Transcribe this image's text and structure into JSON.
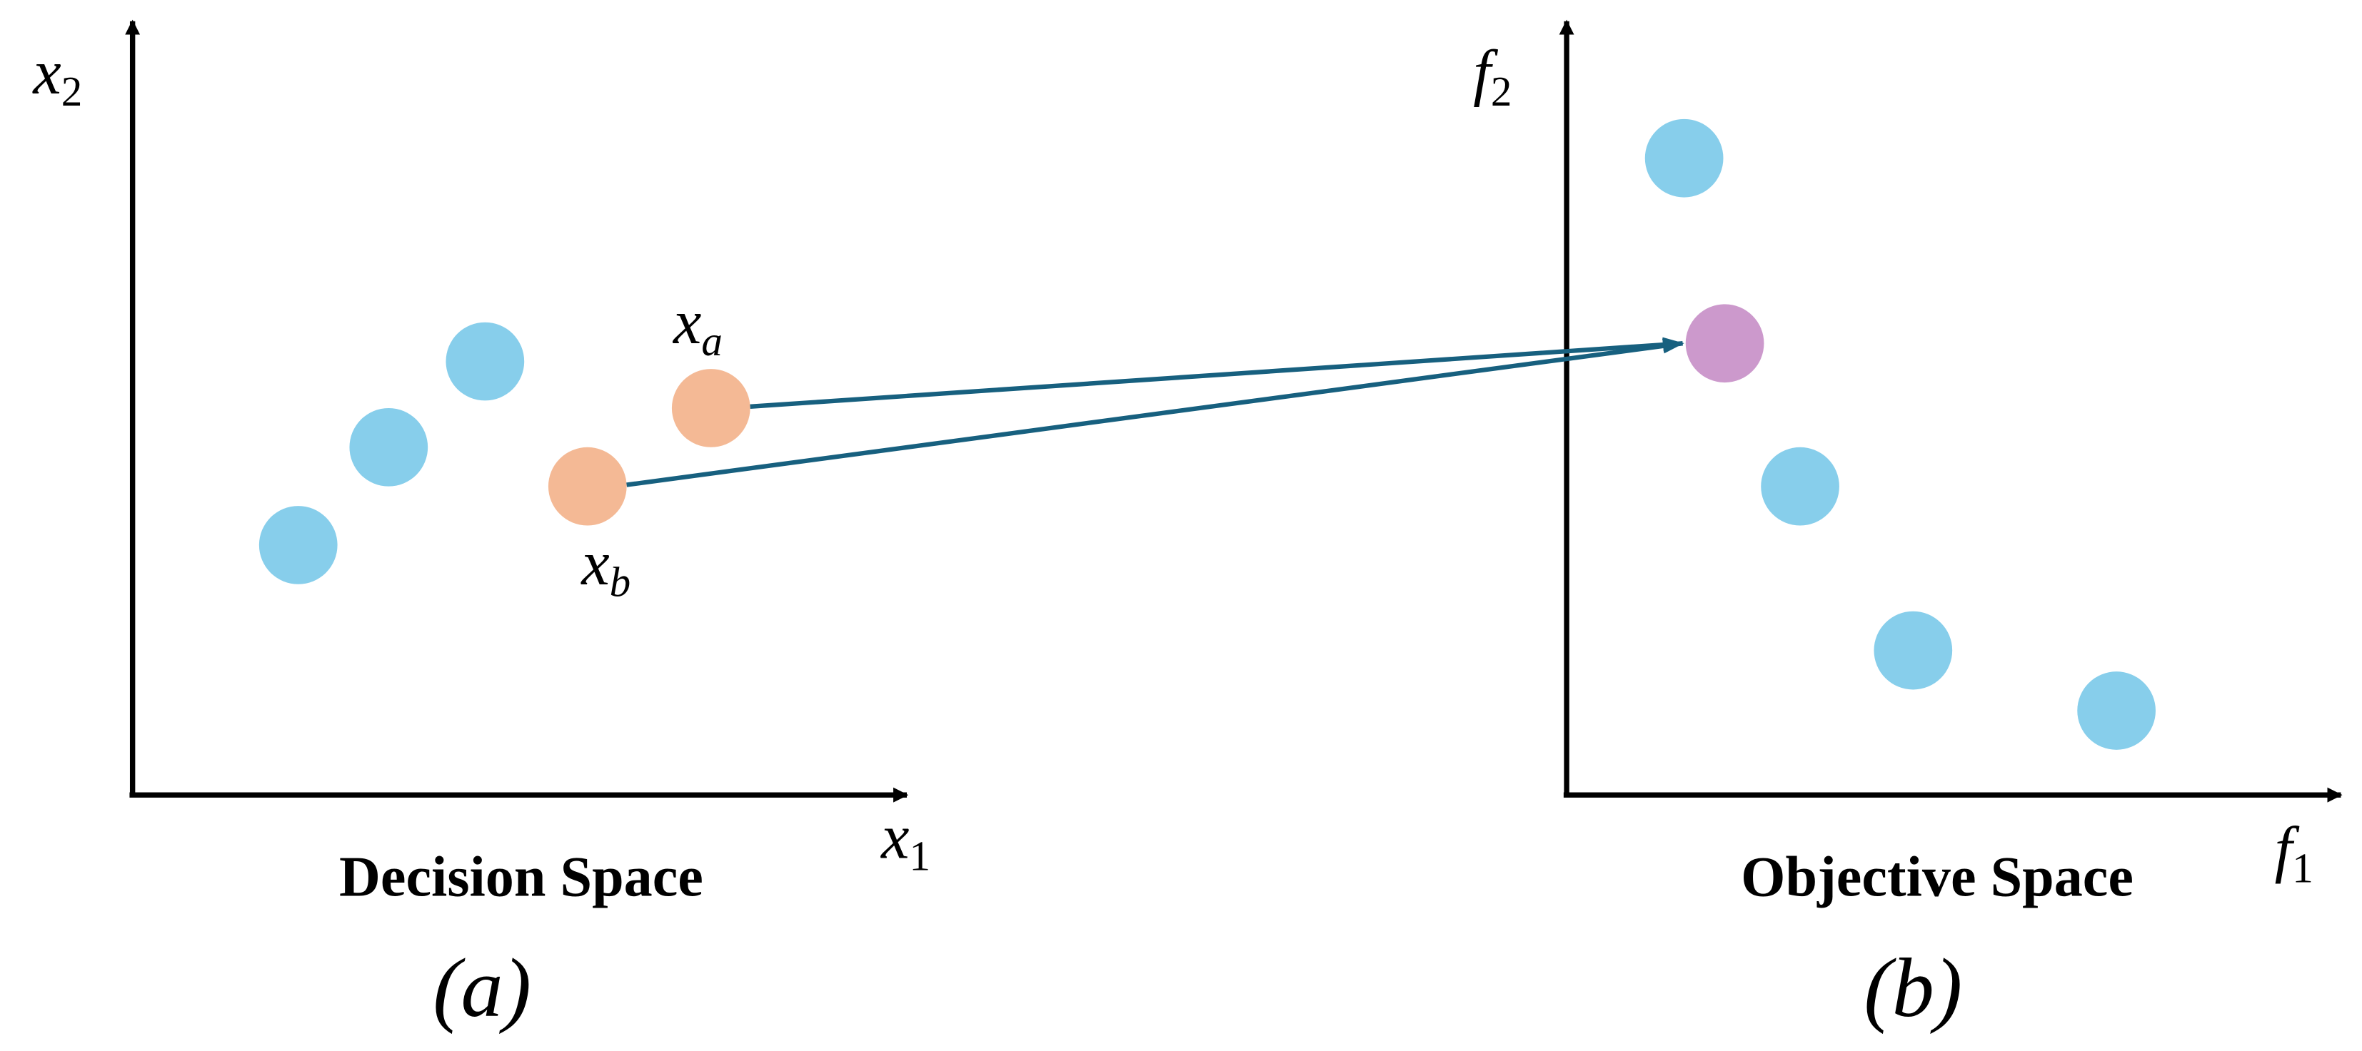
{
  "left_panel": {
    "y_axis": {
      "symbol": "x",
      "subscript": "2"
    },
    "x_axis": {
      "symbol": "x",
      "subscript": "1"
    },
    "point_a": {
      "symbol": "x",
      "subscript": "a"
    },
    "point_b": {
      "symbol": "x",
      "subscript": "b"
    },
    "caption": "Decision Space",
    "tag": "(a)"
  },
  "right_panel": {
    "y_axis": {
      "symbol": "f",
      "subscript": "2"
    },
    "x_axis": {
      "symbol": "f",
      "subscript": "1"
    },
    "caption": "Objective Space",
    "tag": "(b)"
  }
}
